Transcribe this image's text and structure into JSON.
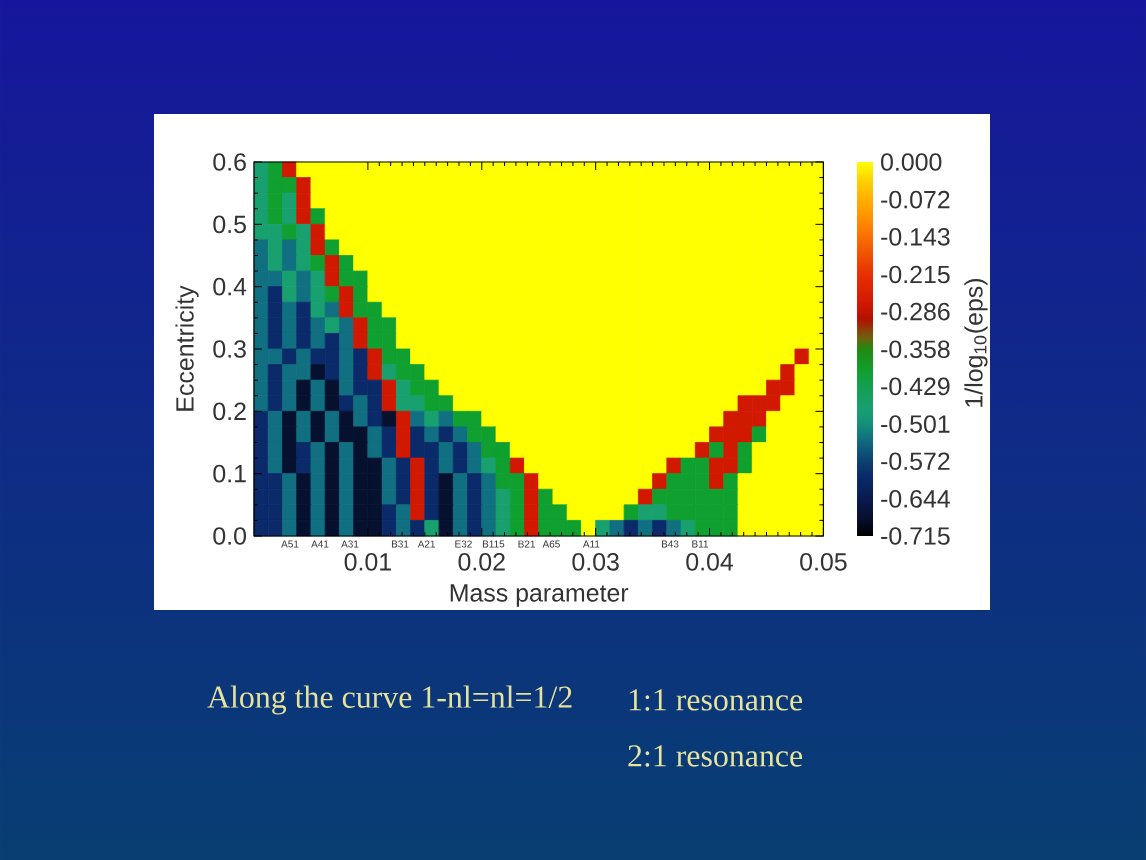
{
  "chart_data": {
    "type": "heatmap",
    "xlabel": "Mass parameter",
    "ylabel": "Eccentricity",
    "clabel": "1/log$_{10}$(eps)",
    "x": [
      0.000625,
      0.001875,
      0.003125,
      0.004375,
      0.005625,
      0.006875,
      0.008125,
      0.009375,
      0.010625,
      0.011875,
      0.013125,
      0.014375,
      0.015625,
      0.016875,
      0.018125,
      0.019375,
      0.020625,
      0.021875,
      0.023125,
      0.024375,
      0.025625,
      0.026875,
      0.028125,
      0.029375,
      0.030625,
      0.031875,
      0.033125,
      0.034375,
      0.035625,
      0.036875,
      0.038125,
      0.039375,
      0.040625,
      0.041875,
      0.043125,
      0.044375,
      0.045625,
      0.046875,
      0.048125,
      0.049375
    ],
    "y": [
      0.5875,
      0.5625,
      0.5375,
      0.5125,
      0.4875,
      0.4625,
      0.4375,
      0.4125,
      0.3875,
      0.3625,
      0.3375,
      0.3125,
      0.2875,
      0.2625,
      0.2375,
      0.2125,
      0.1875,
      0.1625,
      0.1375,
      0.1125,
      0.0875,
      0.0625,
      0.0375,
      0.0125
    ],
    "cells": [
      [
        -0.47,
        -0.4,
        -0.27,
        0,
        0,
        0,
        0,
        0,
        0,
        0,
        0,
        0,
        0,
        0,
        0,
        0,
        0,
        0,
        0,
        0,
        0,
        0,
        0,
        0,
        0,
        0,
        0,
        0,
        0,
        0,
        0,
        0,
        0,
        0,
        0,
        0,
        0,
        0,
        0,
        0
      ],
      [
        -0.47,
        -0.4,
        -0.4,
        -0.27,
        0,
        0,
        0,
        0,
        0,
        0,
        0,
        0,
        0,
        0,
        0,
        0,
        0,
        0,
        0,
        0,
        0,
        0,
        0,
        0,
        0,
        0,
        0,
        0,
        0,
        0,
        0,
        0,
        0,
        0,
        0,
        0,
        0,
        0,
        0,
        0
      ],
      [
        -0.47,
        -0.4,
        -0.47,
        -0.27,
        0,
        0,
        0,
        0,
        0,
        0,
        0,
        0,
        0,
        0,
        0,
        0,
        0,
        0,
        0,
        0,
        0,
        0,
        0,
        0,
        0,
        0,
        0,
        0,
        0,
        0,
        0,
        0,
        0,
        0,
        0,
        0,
        0,
        0,
        0,
        0
      ],
      [
        -0.47,
        -0.4,
        -0.47,
        -0.27,
        -0.4,
        0,
        0,
        0,
        0,
        0,
        0,
        0,
        0,
        0,
        0,
        0,
        0,
        0,
        0,
        0,
        0,
        0,
        0,
        0,
        0,
        0,
        0,
        0,
        0,
        0,
        0,
        0,
        0,
        0,
        0,
        0,
        0,
        0,
        0,
        0
      ],
      [
        -0.47,
        -0.47,
        -0.4,
        -0.47,
        -0.27,
        0,
        0,
        0,
        0,
        0,
        0,
        0,
        0,
        0,
        0,
        0,
        0,
        0,
        0,
        0,
        0,
        0,
        0,
        0,
        0,
        0,
        0,
        0,
        0,
        0,
        0,
        0,
        0,
        0,
        0,
        0,
        0,
        0,
        0,
        0
      ],
      [
        -0.53,
        -0.47,
        -0.53,
        -0.47,
        -0.27,
        -0.4,
        0,
        0,
        0,
        0,
        0,
        0,
        0,
        0,
        0,
        0,
        0,
        0,
        0,
        0,
        0,
        0,
        0,
        0,
        0,
        0,
        0,
        0,
        0,
        0,
        0,
        0,
        0,
        0,
        0,
        0,
        0,
        0,
        0,
        0
      ],
      [
        -0.53,
        -0.47,
        -0.53,
        -0.47,
        -0.4,
        -0.27,
        -0.4,
        0,
        0,
        0,
        0,
        0,
        0,
        0,
        0,
        0,
        0,
        0,
        0,
        0,
        0,
        0,
        0,
        0,
        0,
        0,
        0,
        0,
        0,
        0,
        0,
        0,
        0,
        0,
        0,
        0,
        0,
        0,
        0,
        0
      ],
      [
        -0.53,
        -0.53,
        -0.47,
        -0.53,
        -0.47,
        -0.27,
        -0.4,
        -0.4,
        0,
        0,
        0,
        0,
        0,
        0,
        0,
        0,
        0,
        0,
        0,
        0,
        0,
        0,
        0,
        0,
        0,
        0,
        0,
        0,
        0,
        0,
        0,
        0,
        0,
        0,
        0,
        0,
        0,
        0,
        0,
        0
      ],
      [
        -0.53,
        -0.6,
        -0.47,
        -0.53,
        -0.47,
        -0.4,
        -0.27,
        -0.4,
        0,
        0,
        0,
        0,
        0,
        0,
        0,
        0,
        0,
        0,
        0,
        0,
        0,
        0,
        0,
        0,
        0,
        0,
        0,
        0,
        0,
        0,
        0,
        0,
        0,
        0,
        0,
        0,
        0,
        0,
        0,
        0
      ],
      [
        -0.53,
        -0.6,
        -0.53,
        -0.6,
        -0.47,
        -0.53,
        -0.27,
        -0.4,
        -0.4,
        0,
        0,
        0,
        0,
        0,
        0,
        0,
        0,
        0,
        0,
        0,
        0,
        0,
        0,
        0,
        0,
        0,
        0,
        0,
        0,
        0,
        0,
        0,
        0,
        0,
        0,
        0,
        0,
        0,
        0,
        0
      ],
      [
        -0.53,
        -0.6,
        -0.53,
        -0.6,
        -0.53,
        -0.47,
        -0.53,
        -0.27,
        -0.4,
        -0.4,
        0,
        0,
        0,
        0,
        0,
        0,
        0,
        0,
        0,
        0,
        0,
        0,
        0,
        0,
        0,
        0,
        0,
        0,
        0,
        0,
        0,
        0,
        0,
        0,
        0,
        0,
        0,
        0,
        0,
        0
      ],
      [
        -0.53,
        -0.6,
        -0.53,
        -0.6,
        -0.53,
        -0.6,
        -0.53,
        -0.27,
        -0.4,
        -0.4,
        0,
        0,
        0,
        0,
        0,
        0,
        0,
        0,
        0,
        0,
        0,
        0,
        0,
        0,
        0,
        0,
        0,
        0,
        0,
        0,
        0,
        0,
        0,
        0,
        0,
        0,
        0,
        0,
        0,
        0
      ],
      [
        -0.53,
        -0.53,
        -0.6,
        -0.53,
        -0.6,
        -0.6,
        -0.53,
        -0.6,
        -0.27,
        -0.4,
        -0.4,
        0,
        0,
        0,
        0,
        0,
        0,
        0,
        0,
        0,
        0,
        0,
        0,
        0,
        0,
        0,
        0,
        0,
        0,
        0,
        0,
        0,
        0,
        0,
        0,
        0,
        0,
        0,
        -0.27,
        0
      ],
      [
        -0.53,
        -0.6,
        -0.53,
        -0.53,
        -0.68,
        -0.6,
        -0.53,
        -0.6,
        -0.27,
        -0.47,
        -0.4,
        -0.4,
        0,
        0,
        0,
        0,
        0,
        0,
        0,
        0,
        0,
        0,
        0,
        0,
        0,
        0,
        0,
        0,
        0,
        0,
        0,
        0,
        0,
        0,
        0,
        0,
        0,
        -0.27,
        0,
        0
      ],
      [
        -0.53,
        -0.6,
        -0.53,
        -0.68,
        -0.53,
        -0.68,
        -0.53,
        -0.6,
        -0.6,
        -0.27,
        -0.47,
        -0.4,
        -0.4,
        0,
        0,
        0,
        0,
        0,
        0,
        0,
        0,
        0,
        0,
        0,
        0,
        0,
        0,
        0,
        0,
        0,
        0,
        0,
        0,
        0,
        0,
        0,
        -0.27,
        -0.27,
        0,
        0
      ],
      [
        -0.53,
        -0.6,
        -0.53,
        -0.68,
        -0.53,
        -0.68,
        -0.6,
        -0.53,
        -0.6,
        -0.27,
        -0.47,
        -0.47,
        -0.4,
        -0.4,
        0,
        0,
        0,
        0,
        0,
        0,
        0,
        0,
        0,
        0,
        0,
        0,
        0,
        0,
        0,
        0,
        0,
        0,
        0,
        0,
        -0.27,
        -0.27,
        -0.27,
        0,
        0,
        0
      ],
      [
        -0.6,
        -0.53,
        -0.68,
        -0.53,
        -0.68,
        -0.53,
        -0.68,
        -0.53,
        -0.6,
        -0.68,
        -0.27,
        -0.53,
        -0.47,
        -0.53,
        -0.4,
        -0.4,
        0,
        0,
        0,
        0,
        0,
        0,
        0,
        0,
        0,
        0,
        0,
        0,
        0,
        0,
        0,
        0,
        0,
        -0.27,
        -0.27,
        -0.27,
        0,
        0,
        0,
        0
      ],
      [
        -0.6,
        -0.53,
        -0.68,
        -0.53,
        -0.68,
        -0.53,
        -0.68,
        -0.68,
        -0.53,
        -0.6,
        -0.27,
        -0.6,
        -0.53,
        -0.6,
        -0.53,
        -0.4,
        -0.4,
        0,
        0,
        0,
        0,
        0,
        0,
        0,
        0,
        0,
        0,
        0,
        0,
        0,
        0,
        0,
        -0.27,
        -0.27,
        -0.27,
        -0.4,
        0,
        0,
        0,
        0
      ],
      [
        -0.6,
        -0.53,
        -0.68,
        -0.6,
        -0.53,
        -0.68,
        -0.53,
        -0.68,
        -0.53,
        -0.6,
        -0.27,
        -0.6,
        -0.6,
        -0.53,
        -0.6,
        -0.53,
        -0.4,
        -0.4,
        0,
        0,
        0,
        0,
        0,
        0,
        0,
        0,
        0,
        0,
        0,
        0,
        0,
        -0.27,
        -0.4,
        -0.27,
        -0.4,
        0,
        0,
        0,
        0,
        0
      ],
      [
        -0.6,
        -0.53,
        -0.68,
        -0.6,
        -0.53,
        -0.68,
        -0.53,
        -0.68,
        -0.68,
        -0.53,
        -0.6,
        -0.27,
        -0.6,
        -0.53,
        -0.6,
        -0.53,
        -0.47,
        -0.4,
        -0.27,
        0,
        0,
        0,
        0,
        0,
        0,
        0,
        0,
        0,
        0,
        -0.27,
        -0.4,
        -0.4,
        -0.27,
        -0.27,
        -0.4,
        0,
        0,
        0,
        0,
        0
      ],
      [
        -0.6,
        -0.6,
        -0.53,
        -0.68,
        -0.53,
        -0.68,
        -0.53,
        -0.68,
        -0.68,
        -0.53,
        -0.6,
        -0.27,
        -0.6,
        -0.68,
        -0.53,
        -0.6,
        -0.53,
        -0.4,
        -0.4,
        -0.27,
        0,
        0,
        0,
        0,
        0,
        0,
        0,
        0,
        -0.27,
        -0.4,
        -0.4,
        -0.4,
        -0.27,
        -0.4,
        0,
        0,
        0,
        0,
        0,
        0
      ],
      [
        -0.6,
        -0.6,
        -0.53,
        -0.68,
        -0.53,
        -0.68,
        -0.53,
        -0.68,
        -0.68,
        -0.53,
        -0.6,
        -0.27,
        -0.6,
        -0.68,
        -0.53,
        -0.6,
        -0.53,
        -0.47,
        -0.4,
        -0.27,
        -0.4,
        0,
        0,
        0,
        0,
        0,
        0,
        -0.27,
        -0.4,
        -0.4,
        -0.4,
        -0.4,
        -0.4,
        -0.4,
        0,
        0,
        0,
        0,
        0,
        0
      ],
      [
        -0.6,
        -0.6,
        -0.53,
        -0.68,
        -0.53,
        -0.68,
        -0.53,
        -0.68,
        -0.68,
        -0.6,
        -0.53,
        -0.27,
        -0.6,
        -0.68,
        -0.53,
        -0.6,
        -0.53,
        -0.47,
        -0.4,
        -0.27,
        -0.4,
        -0.4,
        0,
        0,
        0,
        0,
        -0.4,
        -0.47,
        -0.47,
        -0.4,
        -0.4,
        -0.4,
        -0.4,
        -0.4,
        0,
        0,
        0,
        0,
        0,
        0
      ],
      [
        -0.6,
        -0.6,
        -0.53,
        -0.68,
        -0.53,
        -0.68,
        -0.53,
        -0.68,
        -0.68,
        -0.6,
        -0.53,
        -0.6,
        -0.47,
        -0.68,
        -0.53,
        -0.6,
        -0.53,
        -0.47,
        -0.4,
        -0.27,
        -0.4,
        -0.4,
        -0.4,
        0,
        -0.47,
        -0.53,
        -0.6,
        -0.53,
        -0.6,
        -0.53,
        -0.47,
        -0.4,
        -0.4,
        -0.4,
        0,
        0,
        0,
        0,
        0,
        0
      ]
    ],
    "xlim": [
      0,
      0.05
    ],
    "ylim": [
      0,
      0.6
    ],
    "xticks": [
      0.01,
      0.02,
      0.03,
      0.04,
      0.05
    ],
    "yticks": [
      {
        "value": 0,
        "label": "0.0"
      },
      0.1,
      0.2,
      0.3,
      0.4,
      0.5,
      0.6
    ],
    "clim": [
      -0.715,
      0
    ],
    "cticks": [
      {
        "value": 0,
        "label": "0.000"
      },
      -0.072,
      -0.143,
      -0.215,
      -0.286,
      -0.358,
      -0.429,
      -0.501,
      -0.572,
      -0.644,
      -0.715
    ],
    "annotations": [
      "A51",
      "A41",
      "A31",
      "B31",
      "A21",
      "E32",
      "B115",
      "B21",
      "A65",
      "A11",
      "B43",
      "B11",
      "Along the curve 1-nl=nl=1/2",
      "1:1 resonance",
      "2:1 resonance"
    ]
  }
}
